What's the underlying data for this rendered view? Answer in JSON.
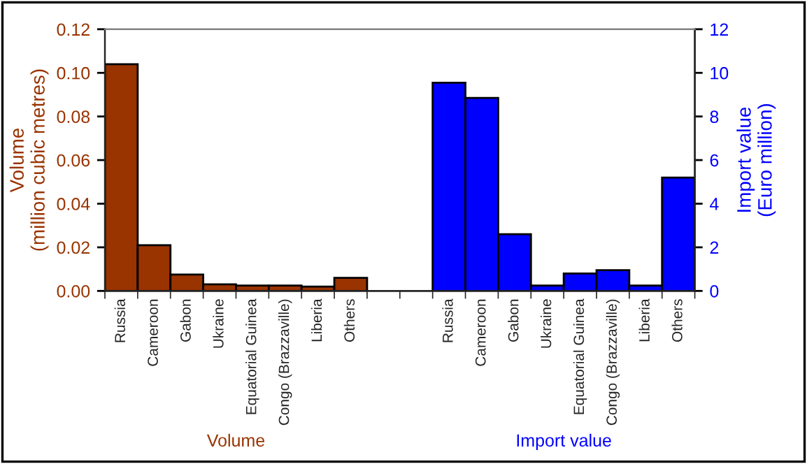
{
  "chart_data": {
    "type": "bar",
    "categories": [
      "Russia",
      "Cameroon",
      "Gabon",
      "Ukraine",
      "Equatorial Guinea",
      "Congo (Brazzaville)",
      "Liberia",
      "Others",
      null,
      null,
      "Russia",
      "Cameroon",
      "Gabon",
      "Ukraine",
      "Equatorial Guinea",
      "Congo (Brazzaville)",
      "Liberia",
      "Others"
    ],
    "series": [
      {
        "name": "Volume",
        "color": "#993300",
        "values": [
          0.104,
          0.021,
          0.0075,
          0.003,
          0.0025,
          0.0025,
          0.002,
          0.006,
          null,
          null,
          null,
          null,
          null,
          null,
          null,
          null,
          null,
          null
        ]
      },
      {
        "name": "Import value",
        "color": "#0000ff",
        "axis": "y2",
        "values": [
          null,
          null,
          null,
          null,
          null,
          null,
          null,
          null,
          null,
          null,
          9.55,
          8.85,
          2.6,
          0.25,
          0.8,
          0.95,
          0.25,
          5.2
        ]
      }
    ],
    "ylabel": "Volume\n(million cubic metres)",
    "y2label": "Import value\n(Euro million)",
    "ylim": [
      0,
      0.12
    ],
    "yticks": [
      {
        "value": 0,
        "label": "0.00"
      },
      {
        "value": 0.02,
        "label": "0.02"
      },
      {
        "value": 0.04,
        "label": "0.04"
      },
      {
        "value": 0.06,
        "label": "0.06"
      },
      {
        "value": 0.08,
        "label": "0.08"
      },
      {
        "value": 0.1,
        "label": "0.10"
      },
      {
        "value": 0.12,
        "label": "0.12"
      }
    ],
    "y2lim": [
      0,
      12
    ],
    "y2ticks": [
      0,
      2,
      4,
      6,
      8,
      10,
      12
    ],
    "legend": false
  }
}
